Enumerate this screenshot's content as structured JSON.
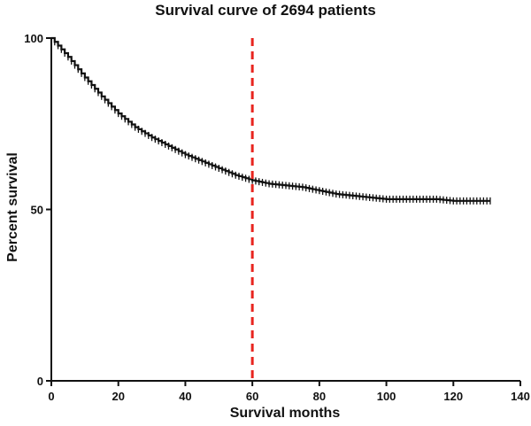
{
  "chart_data": {
    "type": "line",
    "title": "Survival curve of 2694 patients",
    "xlabel": "Survival months",
    "ylabel": "Percent survival",
    "xlim": [
      0,
      140
    ],
    "ylim": [
      0,
      100
    ],
    "xticks": [
      0,
      20,
      40,
      60,
      80,
      100,
      120,
      140
    ],
    "yticks": [
      0,
      50,
      100
    ],
    "grid": false,
    "censor_marks": true,
    "reference_line": {
      "x": 60,
      "style": "dashed",
      "color": "#e8251f"
    },
    "line_color": "#111111",
    "series": [
      {
        "x": [
          0,
          5,
          10,
          15,
          20,
          25,
          30,
          35,
          40,
          45,
          50,
          55,
          60,
          65,
          70,
          75,
          80,
          85,
          90,
          95,
          100,
          105,
          110,
          115,
          120,
          125,
          131
        ],
        "y": [
          100,
          94.5,
          88.5,
          83,
          78,
          74,
          71,
          68.5,
          66,
          64,
          62,
          60,
          58.5,
          57.5,
          57,
          56.5,
          55.5,
          54.5,
          54,
          53.5,
          53,
          53,
          53,
          53,
          52.5,
          52.5,
          52.5
        ]
      }
    ]
  }
}
